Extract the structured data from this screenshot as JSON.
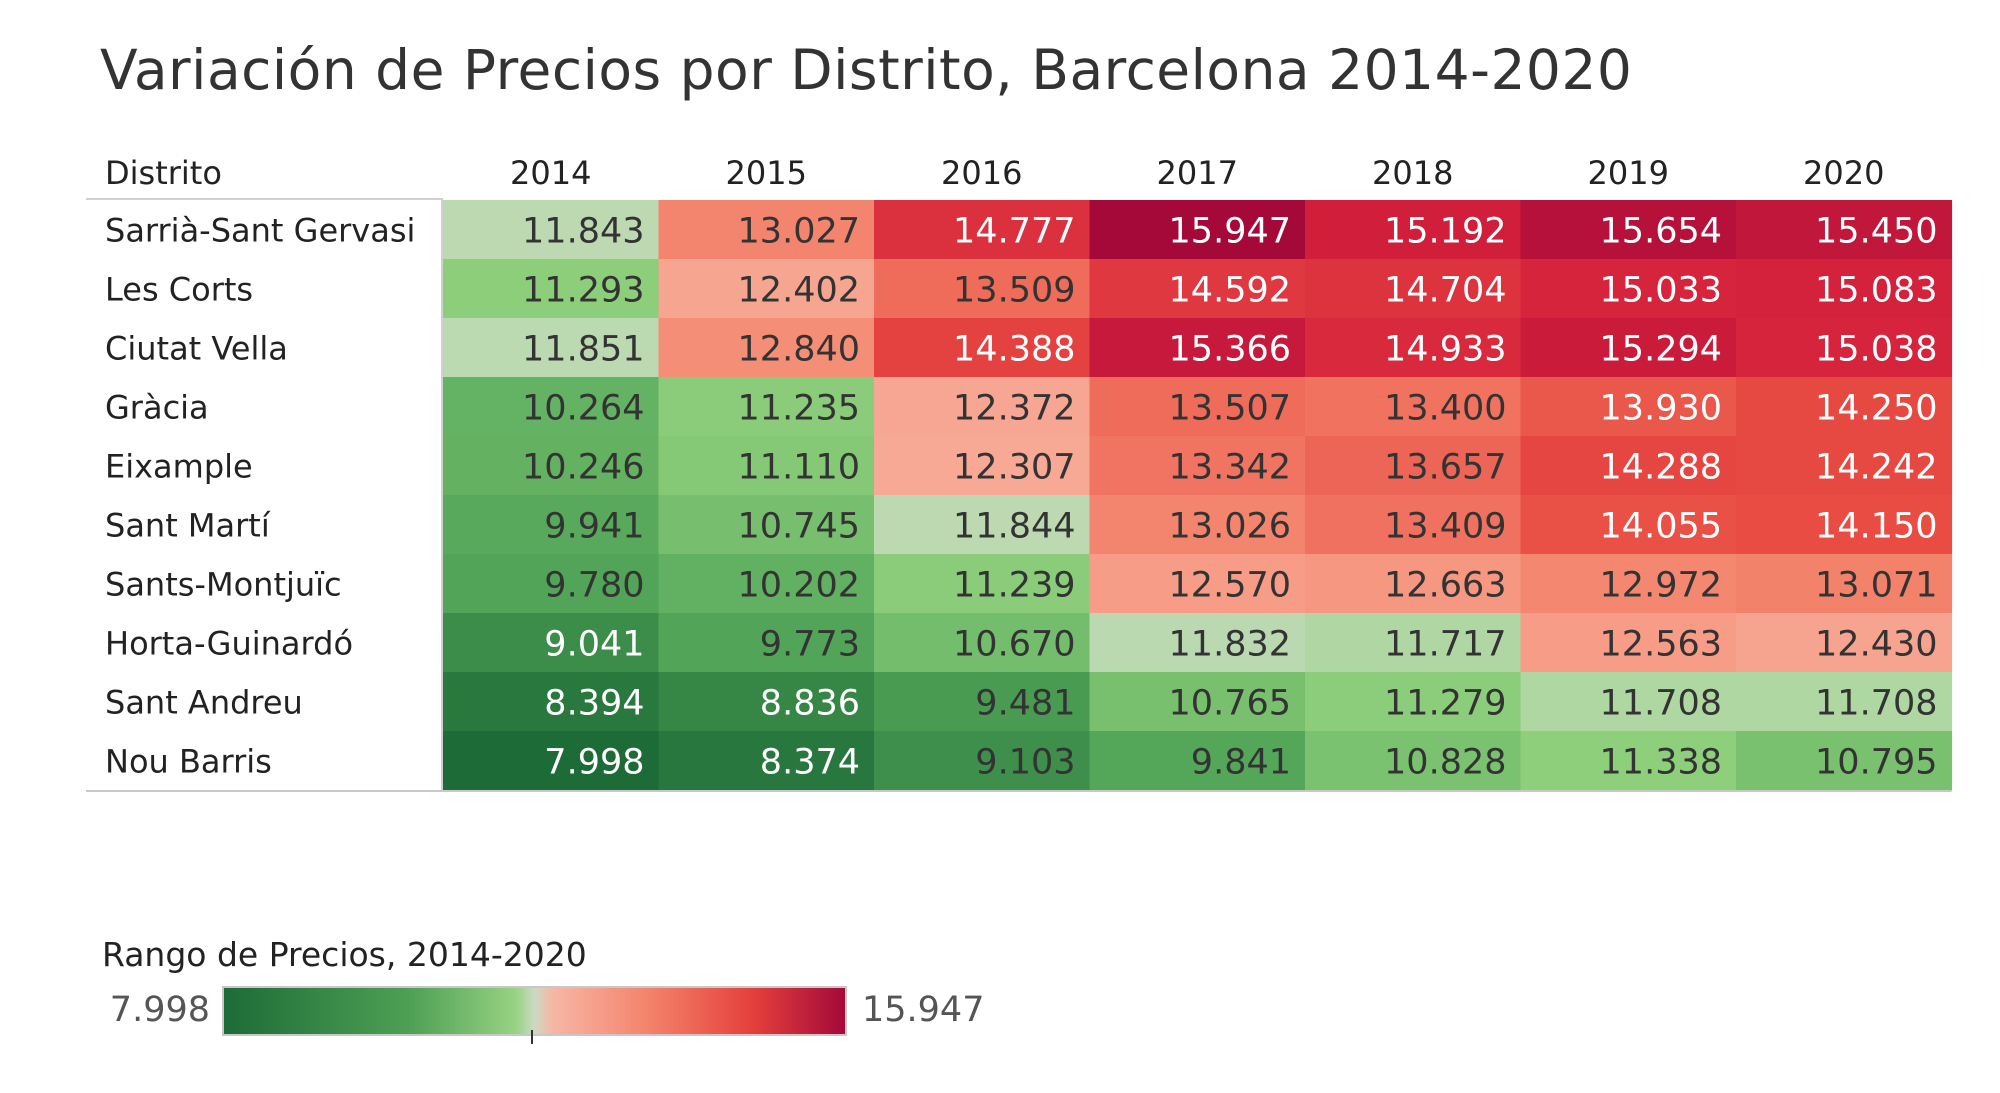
{
  "chart_data": {
    "type": "heatmap",
    "title": "Variación de Precios por Distrito, Barcelona 2014-2020",
    "row_header": "Distrito",
    "columns": [
      "2014",
      "2015",
      "2016",
      "2017",
      "2018",
      "2019",
      "2020"
    ],
    "rows": [
      {
        "name": "Sarrià-Sant Gervasi",
        "values": [
          11.843,
          13.027,
          14.777,
          15.947,
          15.192,
          15.654,
          15.45
        ],
        "labels": [
          "11.843",
          "13.027",
          "14.777",
          "15.947",
          "15.192",
          "15.654",
          "15.450"
        ]
      },
      {
        "name": "Les Corts",
        "values": [
          11.293,
          12.402,
          13.509,
          14.592,
          14.704,
          15.033,
          15.083
        ],
        "labels": [
          "11.293",
          "12.402",
          "13.509",
          "14.592",
          "14.704",
          "15.033",
          "15.083"
        ]
      },
      {
        "name": "Ciutat Vella",
        "values": [
          11.851,
          12.84,
          14.388,
          15.366,
          14.933,
          15.294,
          15.038
        ],
        "labels": [
          "11.851",
          "12.840",
          "14.388",
          "15.366",
          "14.933",
          "15.294",
          "15.038"
        ]
      },
      {
        "name": "Gràcia",
        "values": [
          10.264,
          11.235,
          12.372,
          13.507,
          13.4,
          13.93,
          14.25
        ],
        "labels": [
          "10.264",
          "11.235",
          "12.372",
          "13.507",
          "13.400",
          "13.930",
          "14.250"
        ]
      },
      {
        "name": "Eixample",
        "values": [
          10.246,
          11.11,
          12.307,
          13.342,
          13.657,
          14.288,
          14.242
        ],
        "labels": [
          "10.246",
          "11.110",
          "12.307",
          "13.342",
          "13.657",
          "14.288",
          "14.242"
        ]
      },
      {
        "name": "Sant Martí",
        "values": [
          9.941,
          10.745,
          11.844,
          13.026,
          13.409,
          14.055,
          14.15
        ],
        "labels": [
          "9.941",
          "10.745",
          "11.844",
          "13.026",
          "13.409",
          "14.055",
          "14.150"
        ]
      },
      {
        "name": "Sants-Montjuïc",
        "values": [
          9.78,
          10.202,
          11.239,
          12.57,
          12.663,
          12.972,
          13.071
        ],
        "labels": [
          "9.780",
          "10.202",
          "11.239",
          "12.570",
          "12.663",
          "12.972",
          "13.071"
        ]
      },
      {
        "name": "Horta-Guinardó",
        "values": [
          9.041,
          9.773,
          10.67,
          11.832,
          11.717,
          12.563,
          12.43
        ],
        "labels": [
          "9.041",
          "9.773",
          "10.670",
          "11.832",
          "11.717",
          "12.563",
          "12.430"
        ]
      },
      {
        "name": "Sant Andreu",
        "values": [
          8.394,
          8.836,
          9.481,
          10.765,
          11.279,
          11.708,
          11.708
        ],
        "labels": [
          "8.394",
          "8.836",
          "9.481",
          "10.765",
          "11.279",
          "11.708",
          "11.708"
        ]
      },
      {
        "name": "Nou Barris",
        "values": [
          7.998,
          8.374,
          9.103,
          9.841,
          10.828,
          11.338,
          10.795
        ],
        "labels": [
          "7.998",
          "8.374",
          "9.103",
          "9.841",
          "10.828",
          "11.338",
          "10.795"
        ]
      }
    ],
    "legend": {
      "title": "Rango de Precios, 2014-2020",
      "min": 7.998,
      "max": 15.947,
      "min_label": "7.998",
      "max_label": "15.947",
      "center": 11.9725
    },
    "colors": {
      "low": "#1d6b37",
      "mid_low": "#97d382",
      "mid": "#cdd9c4",
      "mid_high": "#f7b6a4",
      "high": "#a4093a"
    }
  }
}
